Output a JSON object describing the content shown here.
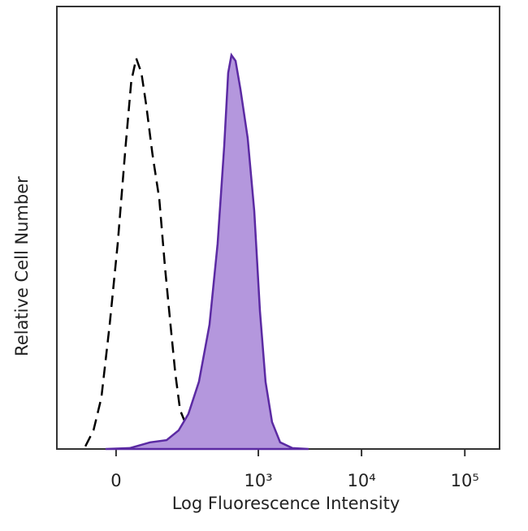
{
  "chart_data": {
    "type": "histogram-overlay",
    "x_label": "Log Fluorescence Intensity",
    "y_label": "Relative Cell Number",
    "xscale": "arcsinh",
    "xscale_cofactor": 84,
    "xlim": [
      -146,
      217000
    ],
    "xticks": [
      0,
      {
        "value": 1000,
        "label": "10³"
      },
      {
        "value": 10000,
        "label": "10⁴"
      },
      {
        "value": 100000,
        "label": "10⁵"
      }
    ],
    "ylim": [
      0,
      100
    ],
    "series": [
      {
        "color": "#000000",
        "fill": "none",
        "dashed": true,
        "x": [
          -62,
          -44,
          -28,
          -12,
          3,
          18,
          29,
          39,
          50,
          61,
          76,
          94,
          111,
          129,
          146,
          165,
          202,
          245
        ],
        "values": [
          0.6,
          4.2,
          11.6,
          28.1,
          46.4,
          68.4,
          83.1,
          88.3,
          85.0,
          77.6,
          66.6,
          56.5,
          40.9,
          28.1,
          17.1,
          8.8,
          4.2,
          0.9
        ]
      },
      {
        "color": "#5b2aa3",
        "fill": "#b497dd",
        "dashed": false,
        "x": [
          -20,
          26,
          70,
          116,
          159,
          202,
          260,
          332,
          400,
          464,
          508,
          547,
          600,
          669,
          788,
          912,
          1036,
          1175,
          1359,
          1630,
          2140,
          3070
        ],
        "values": [
          0,
          0.2,
          1.5,
          2.0,
          4.2,
          7.9,
          15.2,
          28.1,
          46.4,
          68.4,
          85.0,
          89.0,
          87.7,
          81.3,
          70.3,
          53.8,
          31.2,
          15.2,
          6.1,
          1.5,
          0.2,
          0
        ]
      }
    ]
  }
}
